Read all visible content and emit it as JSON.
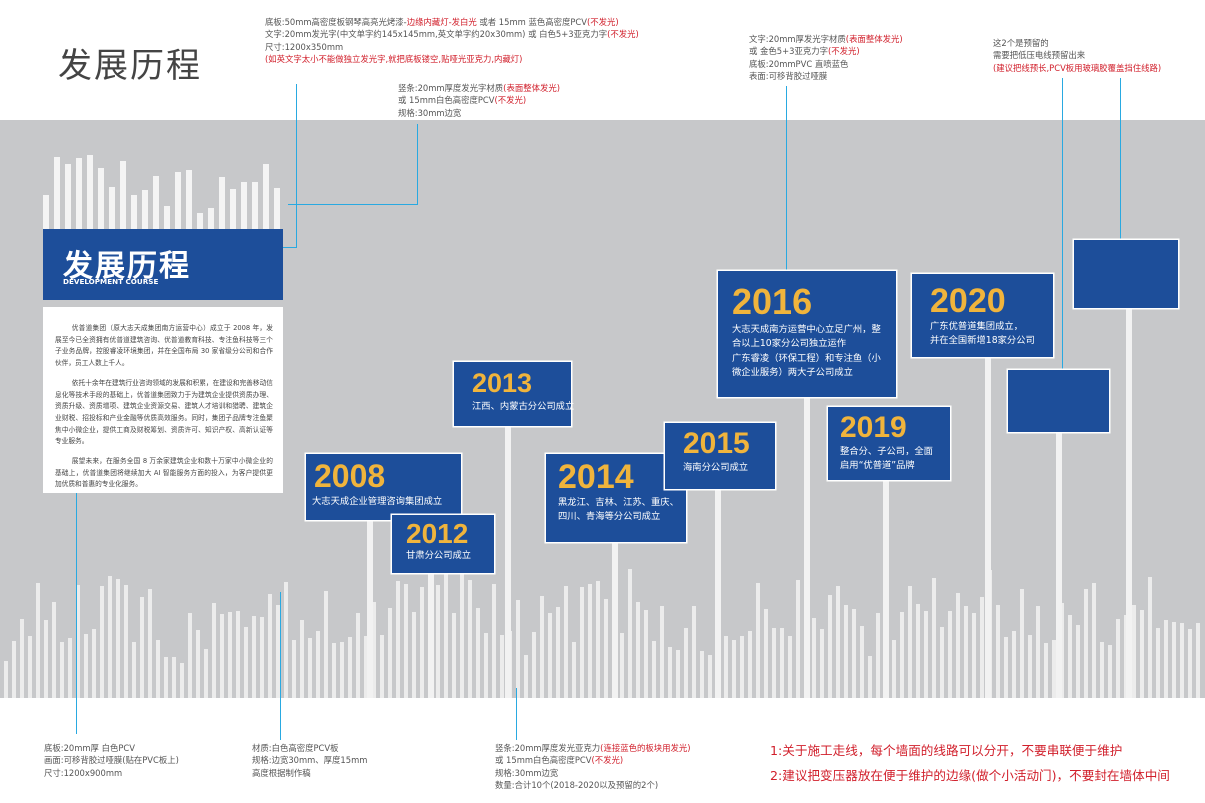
{
  "page": {
    "title": "发展历程"
  },
  "banner": {
    "title": "发展历程",
    "subtitle": "DEVELOPMENT COURSE"
  },
  "intro": {
    "paragraphs": [
      "优普道集团（原大志天成集团南方运营中心）成立于 2008 年，发展至今已全资拥有优普道建筑咨询、优普道教育科技、专注鱼科技等三个子业务品牌，控股睿凌环境集团，并在全国布局 30 家省级分公司和合作伙伴，员工人数上千人。",
      "依托十余年在建筑行业咨询领域的发展和积累，在建设和完善移动信息化等技术手段的基础上，优普道集团致力于为建筑企业提供资质办理、资质升级、资质增项、建筑企业资源交易、建筑人才培训和猎聘、建筑企业财税、招投标和产业金融等优质高效服务。同时，集团子品牌专注鱼聚焦中小微企业，提供工商及财税筹划、资质许可、知识产权、高新认证等专业服务。",
      "展望未来，在服务全国 8 万余家建筑企业和数十万家中小微企业的基础上，优普道集团将继续加大 AI 智能服务方面的投入，为客户提供更加优质和普惠的专业化服务。"
    ]
  },
  "annotations": {
    "top_banner": [
      {
        "parts": [
          {
            "t": "底板:50mm高密度板钢琴高亮光烤漆-"
          },
          {
            "t": "边缘内藏灯-发白光",
            "red": true
          },
          {
            "t": " 或者  15mm 蓝色高密度PCV"
          },
          {
            "t": "(不发光)",
            "red": true
          }
        ]
      },
      {
        "parts": [
          {
            "t": "文字:20mm发光字(中文单字约145x145mm,英文单字约20x30mm)  或 白色5+3亚克力字"
          },
          {
            "t": "(不发光)",
            "red": true
          }
        ]
      },
      {
        "parts": [
          {
            "t": "尺寸:1200x350mm"
          }
        ]
      },
      {
        "parts": [
          {
            "t": "(如英文字太小不能做独立发光字,就把底板镂空,贴哑光亚克力,内藏灯)",
            "red": true
          }
        ]
      }
    ],
    "top_bars": [
      {
        "parts": [
          {
            "t": "竖条:20mm厚度发光字材质"
          },
          {
            "t": "(表面整体发光)",
            "red": true
          }
        ]
      },
      {
        "parts": [
          {
            "t": "或  15mm白色高密度PCV"
          },
          {
            "t": "(不发光)",
            "red": true
          }
        ]
      },
      {
        "parts": [
          {
            "t": "规格:30mm边宽"
          }
        ]
      }
    ],
    "top_2016": [
      {
        "parts": [
          {
            "t": "文字:20mm厚发光字材质"
          },
          {
            "t": "(表面整体发光)",
            "red": true
          }
        ]
      },
      {
        "parts": [
          {
            "t": "或 金色5+3亚克力字"
          },
          {
            "t": "(不发光)",
            "red": true
          }
        ]
      },
      {
        "parts": [
          {
            "t": "底板:20mmPVC 直喷蓝色"
          }
        ]
      },
      {
        "parts": [
          {
            "t": "表面:可移背胶过哑膜"
          }
        ]
      }
    ],
    "top_reserved": [
      {
        "parts": [
          {
            "t": "这2个是预留的"
          }
        ]
      },
      {
        "parts": [
          {
            "t": "需要把低压电线预留出来"
          }
        ]
      },
      {
        "parts": [
          {
            "t": "(建议把线预长,PCV板用玻璃胶覆盖挡住线路)",
            "red": true
          }
        ]
      }
    ],
    "bottom_base": [
      {
        "parts": [
          {
            "t": "底板:20mm厚 白色PCV"
          }
        ]
      },
      {
        "parts": [
          {
            "t": "画面:可移背胶过哑膜(贴在PVC板上)"
          }
        ]
      },
      {
        "parts": [
          {
            "t": "尺寸:1200x900mm"
          }
        ]
      }
    ],
    "bottom_bars": [
      {
        "parts": [
          {
            "t": "材质:白色高密度PCV板"
          }
        ]
      },
      {
        "parts": [
          {
            "t": "规格:边宽30mm、厚度15mm"
          }
        ]
      },
      {
        "parts": [
          {
            "t": "            高度根据制作稿"
          }
        ]
      }
    ],
    "bottom_poles": [
      {
        "parts": [
          {
            "t": "竖条:20mm厚度发光亚克力"
          },
          {
            "t": "(连接蓝色的板块用发光)",
            "red": true
          }
        ]
      },
      {
        "parts": [
          {
            "t": "或  15mm白色高密度PCV"
          },
          {
            "t": "(不发光)",
            "red": true
          }
        ]
      },
      {
        "parts": [
          {
            "t": "规格:30mm边宽"
          }
        ]
      },
      {
        "parts": [
          {
            "t": "数量:合计10个(2018-2020以及预留的2个)"
          }
        ]
      }
    ]
  },
  "milestones": [
    {
      "id": "2008",
      "year": "2008",
      "lines": [
        "大志天成企业管理咨询集团成立"
      ]
    },
    {
      "id": "2012",
      "year": "2012",
      "lines": [
        "甘肃分公司成立"
      ]
    },
    {
      "id": "2013",
      "year": "2013",
      "lines": [
        "江西、内蒙古分公司成立"
      ]
    },
    {
      "id": "2014",
      "year": "2014",
      "lines": [
        "黑龙江、吉林、江苏、重庆、",
        "四川、青海等分公司成立"
      ]
    },
    {
      "id": "2015",
      "year": "2015",
      "lines": [
        "海南分公司成立"
      ]
    },
    {
      "id": "2016",
      "year": "2016",
      "lines": [
        "大志天成南方运营中心立足广州，整",
        "合以上10家分公司独立运作",
        "广东睿凌（环保工程）和专注鱼（小",
        "微企业服务）两大子公司成立"
      ]
    },
    {
      "id": "2019",
      "year": "2019",
      "lines": [
        "整合分、子公司，全面",
        "启用“优普道”品牌"
      ]
    },
    {
      "id": "2020",
      "year": "2020",
      "lines": [
        "广东优普道集团成立，",
        "并在全国新增18家分公司"
      ]
    }
  ],
  "notes": {
    "lines": [
      "1:关于施工走线，每个墙面的线路可以分开，不要串联便于维护",
      "2:建议把变压器放在便于维护的边缘(做个小活动门)，不要封在墙体中间"
    ]
  }
}
